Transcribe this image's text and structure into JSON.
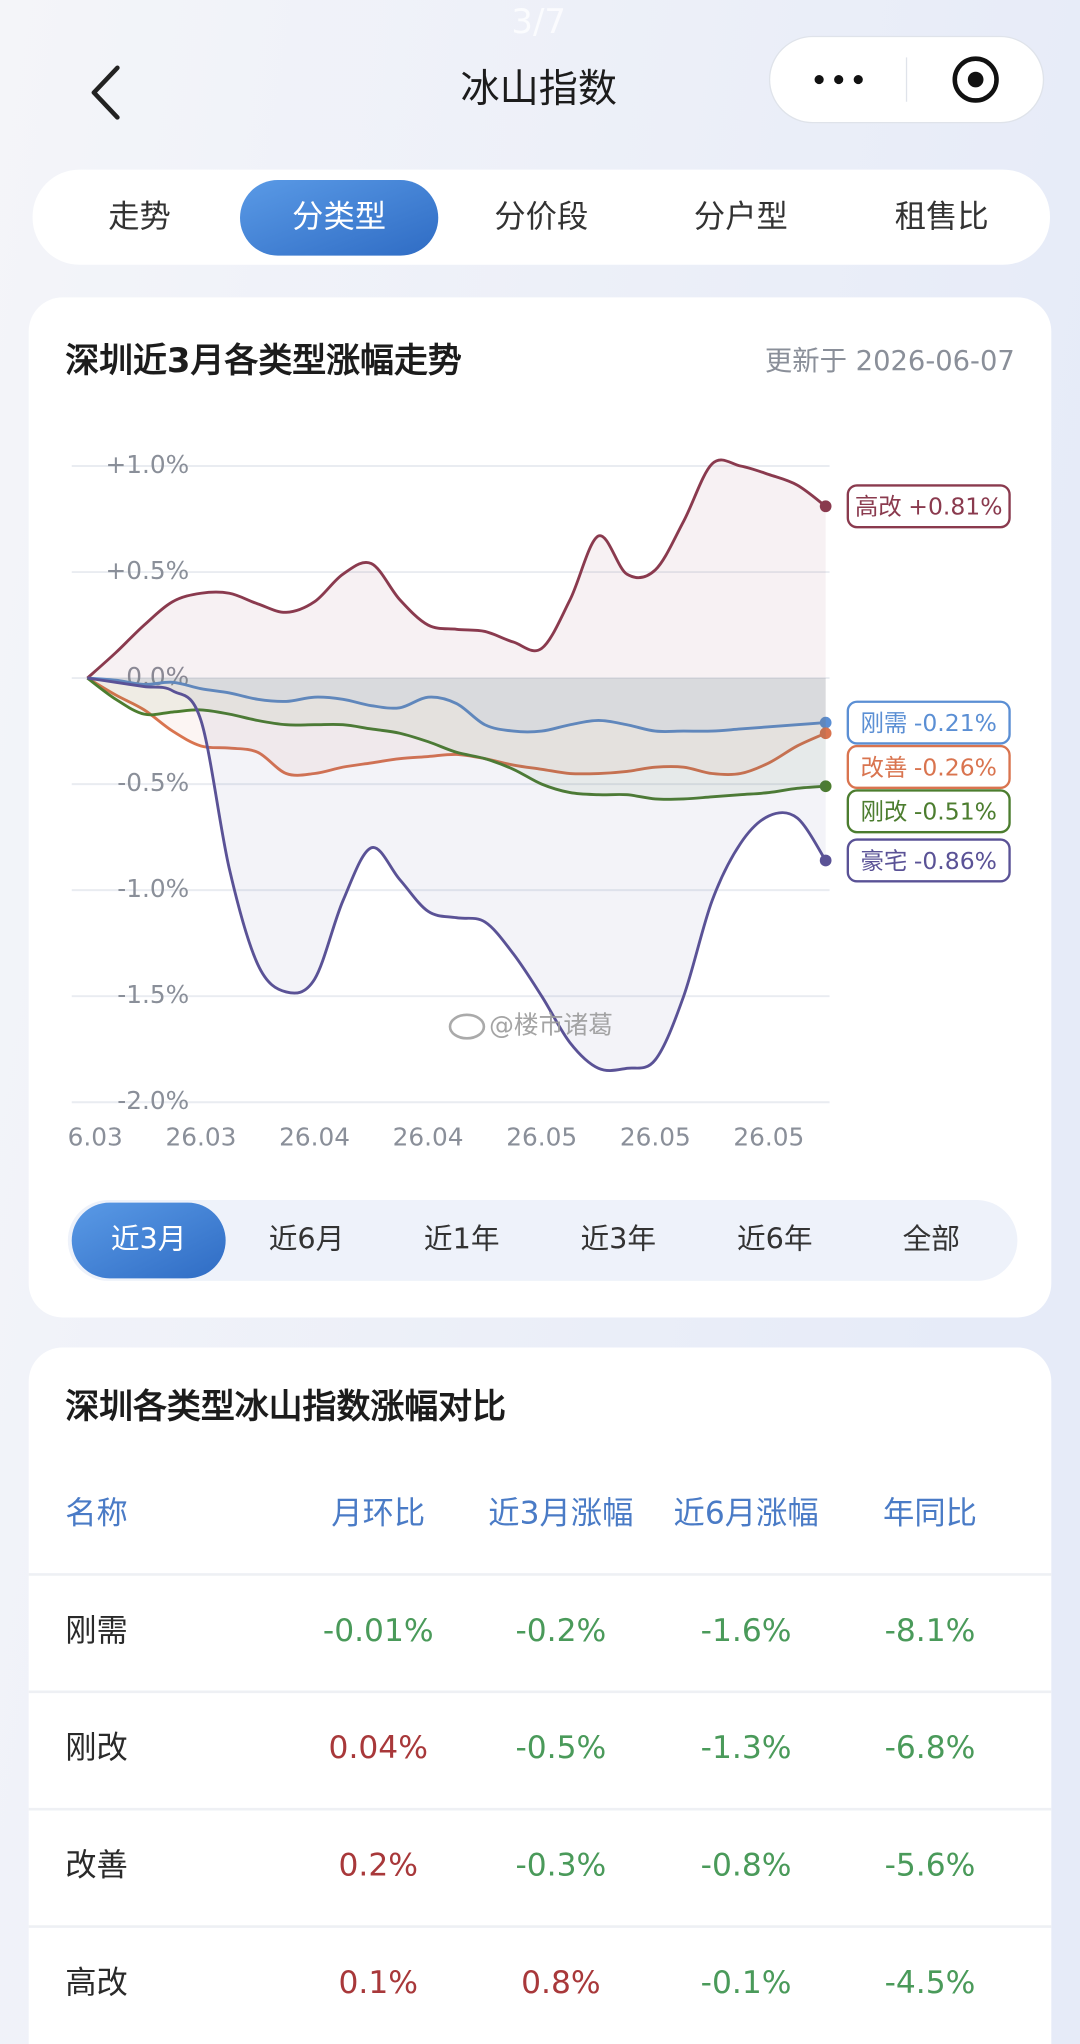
{
  "status": {
    "page_indicator": "3/7"
  },
  "header": {
    "title": "冰山指数"
  },
  "tabs": {
    "items": [
      "走势",
      "分类型",
      "分价段",
      "分户型",
      "租售比"
    ],
    "active": 1
  },
  "trend_card": {
    "title": "深圳近3月各类型涨幅走势",
    "updated": "更新于 2026-06-07",
    "watermark": "@楼市诸葛",
    "ranges": [
      "近3月",
      "近6月",
      "近1年",
      "近3年",
      "近6年",
      "全部"
    ],
    "active_range": 0
  },
  "chart_data": {
    "type": "line",
    "categories": [
      "6.03",
      null,
      null,
      null,
      "26.03",
      null,
      null,
      null,
      "26.04",
      null,
      null,
      null,
      "26.04",
      null,
      null,
      null,
      "26.05",
      null,
      null,
      null,
      "26.05",
      null,
      null,
      null,
      "26.05",
      null,
      null
    ],
    "ylim": [
      -2,
      1.1
    ],
    "yticks": [
      {
        "value": 1,
        "label": "+1.0%"
      },
      {
        "value": 0.5,
        "label": "+0.5%"
      },
      {
        "value": 0,
        "label": "0.0%"
      },
      {
        "value": -0.5,
        "label": "-0.5%"
      },
      {
        "value": -1,
        "label": "-1.0%"
      },
      {
        "value": -1.5,
        "label": "-1.5%"
      },
      {
        "value": -2,
        "label": "-2.0%"
      }
    ],
    "grid": true,
    "series": [
      {
        "name": "高改",
        "color": "#8a3a4e",
        "end_label": "+0.81%",
        "values": [
          0,
          0.12,
          0.25,
          0.36,
          0.4,
          0.4,
          0.35,
          0.31,
          0.36,
          0.49,
          0.54,
          0.37,
          0.25,
          0.23,
          0.22,
          0.17,
          0.14,
          0.37,
          0.67,
          0.49,
          0.51,
          0.74,
          1.01,
          1.0,
          0.96,
          0.91,
          0.81
        ]
      },
      {
        "name": "刚需",
        "color": "#5b8fd4",
        "end_label": "-0.21%",
        "values": [
          0,
          -0.01,
          -0.03,
          -0.02,
          -0.05,
          -0.07,
          -0.1,
          -0.11,
          -0.09,
          -0.1,
          -0.13,
          -0.14,
          -0.09,
          -0.12,
          -0.22,
          -0.25,
          -0.25,
          -0.22,
          -0.2,
          -0.22,
          -0.25,
          -0.25,
          -0.25,
          -0.24,
          -0.23,
          -0.22,
          -0.21
        ]
      },
      {
        "name": "改善",
        "color": "#d9744f",
        "end_label": "-0.26%",
        "values": [
          0,
          -0.08,
          -0.15,
          -0.25,
          -0.32,
          -0.33,
          -0.35,
          -0.45,
          -0.45,
          -0.42,
          -0.4,
          -0.38,
          -0.37,
          -0.36,
          -0.38,
          -0.41,
          -0.43,
          -0.45,
          -0.45,
          -0.44,
          -0.42,
          -0.42,
          -0.45,
          -0.45,
          -0.4,
          -0.32,
          -0.26
        ]
      },
      {
        "name": "刚改",
        "color": "#4c7d2f",
        "end_label": "-0.51%",
        "values": [
          0,
          -0.1,
          -0.17,
          -0.16,
          -0.15,
          -0.17,
          -0.2,
          -0.22,
          -0.22,
          -0.22,
          -0.24,
          -0.26,
          -0.3,
          -0.35,
          -0.38,
          -0.43,
          -0.5,
          -0.54,
          -0.55,
          -0.55,
          -0.57,
          -0.57,
          -0.56,
          -0.55,
          -0.54,
          -0.52,
          -0.51
        ]
      },
      {
        "name": "豪宅",
        "color": "#5a5296",
        "end_label": "-0.86%",
        "values": [
          0,
          -0.02,
          -0.04,
          -0.06,
          -0.2,
          -0.9,
          -1.35,
          -1.48,
          -1.42,
          -1.05,
          -0.8,
          -0.95,
          -1.1,
          -1.13,
          -1.15,
          -1.3,
          -1.5,
          -1.72,
          -1.84,
          -1.84,
          -1.8,
          -1.5,
          -1.05,
          -0.78,
          -0.65,
          -0.66,
          -0.86
        ]
      }
    ]
  },
  "table": {
    "title": "深圳各类型冰山指数涨幅对比",
    "header": [
      "名称",
      "月环比",
      "近3月涨幅",
      "近6月涨幅",
      "年同比"
    ],
    "rows": [
      [
        "刚需",
        "-0.01%",
        "-0.2%",
        "-1.6%",
        "-8.1%"
      ],
      [
        "刚改",
        "0.04%",
        "-0.5%",
        "-1.3%",
        "-6.8%"
      ],
      [
        "改善",
        "0.2%",
        "-0.3%",
        "-0.8%",
        "-5.6%"
      ],
      [
        "高改",
        "0.1%",
        "0.8%",
        "-0.1%",
        "-4.5%"
      ]
    ]
  }
}
